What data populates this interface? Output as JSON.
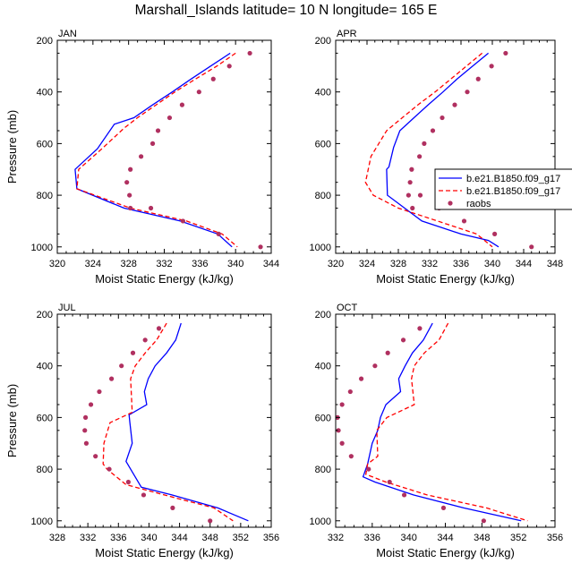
{
  "title": "Marshall_Islands  latitude= 10 N longitude= 165 E",
  "colors": {
    "series_blue": "#0000ff",
    "series_red": "#ff0000",
    "raobs": "#b03060"
  },
  "chart_data": [
    {
      "type": "line",
      "panel": "JAN",
      "xlabel": "Moist Static Energy (kJ/kg)",
      "ylabel": "Pressure (mb)",
      "xlim": [
        320,
        344
      ],
      "ylim": [
        200,
        1025
      ],
      "y_inverted": true,
      "xticks": [
        320,
        324,
        328,
        332,
        336,
        340,
        344
      ],
      "yticks": [
        200,
        400,
        600,
        800,
        1000
      ],
      "series": [
        {
          "name": "b.e21.B1850.f09_g17",
          "style": "solid",
          "color": "#0000ff",
          "x": [
            339.4,
            337.2,
            335.0,
            332.9,
            330.7,
            328.6,
            326.4,
            324.5,
            322.0,
            322.2,
            327.5,
            333.8,
            338.0,
            339.6
          ],
          "y": [
            250,
            300,
            350,
            400,
            450,
            500,
            525,
            620,
            700,
            775,
            850,
            900,
            950,
            1000
          ]
        },
        {
          "name": "b.e21.B1850.f09_g17",
          "style": "dashed",
          "color": "#ff0000",
          "x": [
            340.0,
            337.9,
            335.5,
            333.2,
            331.1,
            329.0,
            327.5,
            325.0,
            322.4,
            322.2,
            328.2,
            334.5,
            338.5,
            340.2
          ],
          "y": [
            250,
            300,
            350,
            400,
            450,
            500,
            540,
            620,
            700,
            775,
            850,
            900,
            950,
            1000
          ]
        },
        {
          "name": "raobs",
          "style": "dots",
          "color": "#b03060",
          "x": [
            341.6,
            339.3,
            337.5,
            335.9,
            334.0,
            332.6,
            331.3,
            330.7,
            329.4,
            328.2,
            327.8,
            328.1,
            328.2,
            330.5,
            334.1,
            338.1,
            342.8
          ],
          "y": [
            250,
            300,
            350,
            400,
            450,
            500,
            550,
            600,
            650,
            700,
            750,
            800,
            850,
            850,
            900,
            950,
            1000
          ]
        }
      ]
    },
    {
      "type": "line",
      "panel": "APR",
      "xlabel": "Moist Static Energy (kJ/kg)",
      "ylabel": "Pressure (mb)",
      "xlim": [
        320,
        348
      ],
      "ylim": [
        200,
        1025
      ],
      "y_inverted": true,
      "xticks": [
        320,
        324,
        328,
        332,
        336,
        340,
        344,
        348
      ],
      "yticks": [
        200,
        400,
        600,
        800,
        1000
      ],
      "series": [
        {
          "name": "b.e21.B1850.f09_g17",
          "style": "solid",
          "color": "#0000ff",
          "x": [
            339.5,
            337.5,
            335.5,
            333.7,
            331.8,
            330.0,
            328.2,
            327.4,
            326.8,
            326.5,
            326.6,
            331.0,
            336.0,
            339.5,
            340.8
          ],
          "y": [
            250,
            300,
            350,
            400,
            450,
            500,
            550,
            615,
            690,
            700,
            800,
            900,
            950,
            975,
            1000
          ]
        },
        {
          "name": "b.e21.B1850.f09_g17",
          "style": "dashed",
          "color": "#ff0000",
          "x": [
            338.7,
            336.7,
            334.7,
            332.7,
            330.5,
            328.5,
            326.5,
            324.5,
            323.8,
            324.8,
            328.0,
            333.0,
            338.0,
            340.0
          ],
          "y": [
            250,
            300,
            350,
            400,
            450,
            500,
            550,
            650,
            750,
            800,
            850,
            900,
            950,
            1000
          ]
        },
        {
          "name": "raobs",
          "style": "dots",
          "color": "#b03060",
          "x": [
            341.7,
            339.9,
            338.2,
            336.8,
            335.2,
            333.6,
            332.4,
            331.3,
            330.7,
            329.7,
            329.5,
            329.3,
            329.8,
            330.8,
            333.2,
            336.4,
            340.3,
            345.0
          ],
          "y": [
            250,
            300,
            350,
            400,
            450,
            500,
            550,
            600,
            650,
            700,
            750,
            800,
            850,
            800,
            850,
            900,
            950,
            1000
          ]
        }
      ]
    },
    {
      "type": "line",
      "panel": "JUL",
      "xlabel": "Moist Static Energy (kJ/kg)",
      "ylabel": "Pressure (mb)",
      "xlim": [
        328,
        356
      ],
      "ylim": [
        200,
        1025
      ],
      "y_inverted": true,
      "xticks": [
        328,
        332,
        336,
        340,
        344,
        348,
        352,
        356
      ],
      "yticks": [
        200,
        400,
        600,
        800,
        1000
      ],
      "series": [
        {
          "name": "b.e21.B1850.f09_g17",
          "style": "solid",
          "color": "#0000ff",
          "x": [
            344.2,
            343.5,
            342.3,
            340.8,
            339.9,
            339.4,
            339.7,
            337.4,
            337.5,
            337.8,
            337.0,
            339.0,
            343.0,
            349.0,
            353.0
          ],
          "y": [
            235,
            300,
            350,
            400,
            450,
            500,
            550,
            590,
            620,
            700,
            770,
            870,
            900,
            950,
            1000
          ]
        },
        {
          "name": "b.e21.B1850.f09_g17",
          "style": "dashed",
          "color": "#ff0000",
          "x": [
            342.3,
            341.0,
            339.5,
            338.2,
            337.6,
            337.8,
            334.9,
            334.1,
            334.0,
            334.5,
            337.0,
            342.0,
            348.5,
            351.0
          ],
          "y": [
            235,
            300,
            350,
            400,
            450,
            580,
            620,
            700,
            780,
            800,
            860,
            900,
            950,
            1000
          ]
        },
        {
          "name": "raobs",
          "style": "dots",
          "color": "#b03060",
          "x": [
            341.3,
            339.5,
            337.9,
            336.4,
            335.1,
            333.5,
            332.4,
            331.7,
            331.6,
            331.8,
            333.0,
            334.8,
            337.3,
            339.3,
            343.1,
            348.0
          ],
          "y": [
            255,
            300,
            350,
            400,
            450,
            500,
            550,
            600,
            650,
            700,
            750,
            800,
            850,
            900,
            950,
            1000
          ]
        }
      ]
    },
    {
      "type": "line",
      "panel": "OCT",
      "xlabel": "Moist Static Energy (kJ/kg)",
      "ylabel": "Pressure (mb)",
      "xlim": [
        332,
        356
      ],
      "ylim": [
        200,
        1025
      ],
      "y_inverted": true,
      "xticks": [
        332,
        336,
        340,
        344,
        348,
        352,
        356
      ],
      "yticks": [
        200,
        400,
        600,
        800,
        1000
      ],
      "series": [
        {
          "name": "b.e21.B1850.f09_g17",
          "style": "solid",
          "color": "#0000ff",
          "x": [
            342.6,
            341.6,
            340.4,
            339.6,
            338.9,
            339.1,
            337.5,
            336.9,
            336.6,
            336.0,
            335.5,
            335.0,
            336.3,
            340.5,
            346.0,
            352.3
          ],
          "y": [
            235,
            300,
            350,
            400,
            450,
            500,
            550,
            600,
            650,
            700,
            780,
            830,
            850,
            900,
            950,
            1000
          ]
        },
        {
          "name": "b.e21.B1850.f09_g17",
          "style": "dashed",
          "color": "#ff0000",
          "x": [
            344.3,
            343.3,
            341.7,
            340.6,
            340.3,
            340.6,
            337.6,
            336.5,
            336.6,
            335.5,
            335.3,
            337.5,
            342.0,
            348.5,
            353.0
          ],
          "y": [
            235,
            300,
            350,
            400,
            450,
            550,
            600,
            650,
            750,
            780,
            820,
            850,
            900,
            950,
            1000
          ]
        },
        {
          "name": "raobs",
          "style": "dots",
          "color": "#b03060",
          "x": [
            341.2,
            339.4,
            337.7,
            336.3,
            334.8,
            333.6,
            332.7,
            332.2,
            332.3,
            332.7,
            333.7,
            335.6,
            337.9,
            339.5,
            343.8,
            348.2
          ],
          "y": [
            255,
            300,
            350,
            400,
            450,
            500,
            550,
            600,
            650,
            700,
            750,
            800,
            850,
            900,
            950,
            1000
          ]
        }
      ]
    }
  ],
  "legend": {
    "entries": [
      {
        "label": "b.e21.B1850.f09_g17",
        "style": "solid"
      },
      {
        "label": "b.e21.B1850.f09_g17",
        "style": "dashed"
      },
      {
        "label": "raobs",
        "style": "dots"
      }
    ]
  }
}
